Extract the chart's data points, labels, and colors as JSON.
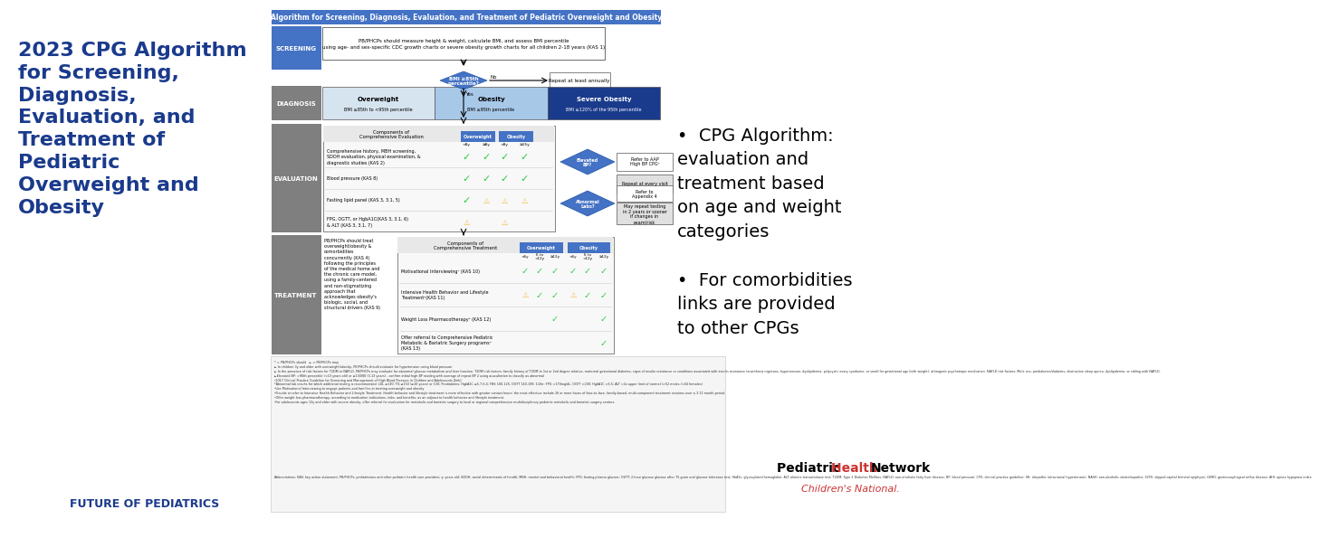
{
  "bg_color": "#ffffff",
  "left_panel": {
    "title_lines": [
      "2023 CPG Algorithm",
      "for Screening,",
      "Diagnosis,",
      "Evaluation, and",
      "Treatment of",
      "Pediatric",
      "Overweight and",
      "Obesity"
    ],
    "title_color": "#1a3a8c",
    "title_fontsize": 16,
    "footer": "FUTURE OF PEDIATRICS",
    "footer_color": "#1a3a8c",
    "footer_fontsize": 9
  },
  "center_panel": {
    "header": "Algorithm for Screening, Diagnosis, Evaluation, and Treatment of Pediatric Overweight and Obesity",
    "header_bg": "#4472c4",
    "header_color": "#ffffff",
    "sections": {
      "screening": {
        "label": "SCREENING",
        "label_bg": "#4472c4",
        "box1_text": "PB/PHCPs should measure height & weight, calculate BMI, and assess BMI percentile\nusing age- and sex-specific CDC growth charts or severe obesity growth charts for all children 2-18 years (KAS 1)",
        "diamond_text": "BMI ≥85th\npercentile?",
        "repeat_text": "Repeat at least annually"
      },
      "diagnosis": {
        "label": "DIAGNOSIS",
        "label_bg": "#7f7f7f",
        "categories": [
          "Overweight",
          "Obesity",
          "Severe Obesity"
        ],
        "descriptions": [
          "BMI ≥85th to <95th percentile",
          "BMI ≥95th percentile",
          "BMI ≥120% of the 95th percentile"
        ],
        "cat_colors": [
          "#d6e4f0",
          "#a8c8e8",
          "#1a3a8c"
        ],
        "cat_text_colors": [
          "#000000",
          "#000000",
          "#ffffff"
        ]
      },
      "evaluation": {
        "label": "EVALUATION",
        "label_bg": "#7f7f7f",
        "rows": [
          "Comprehensive history, MBH screening,\nSDOH evaluation, physical examination, &\ndiagnostic studies (KAS 2)",
          "Blood pressure (KAS 8)",
          "Fasting lipid panel (KAS 3, 3.1, 5)",
          "FPG, OGTT, or HgbA1C(KAS 3, 3.1, 6)\n& ALT (KAS 3, 3.1, 7)"
        ],
        "ow_sub_cols": [
          "<8y",
          "≥8y"
        ],
        "ob_sub_cols": [
          "<8y",
          "≥15y"
        ],
        "elevated_bp_text": "Elevated\nBP?",
        "abnormal_labs_text": "Abnormal\nLabs?",
        "refer_aap_text": "Refer to AAP\nHigh BP CPG²",
        "repeat_visit_text": "Repeat at every visit",
        "refer_appendix_text": "Refer to\nAppendix 4",
        "may_repeat_text": "May repeat testing\nin 2 years or sooner\nif changes in\nexam/risk"
      },
      "treatment": {
        "label": "TREATMENT",
        "label_bg": "#7f7f7f",
        "left_text": "PB/PHCPs should treat\noverweight/obesity &\ncomorbidities\nconcurrently (KAS 4)\nfollowing the principles\nof the medical home and\nthe chronic care model,\nusing a family-centered\nand non-stigmatizing\napproach that\nacknowledges obesity's\nbiologic, social, and\nstructural drivers (KAS 9)",
        "ow_sub_cols": [
          "<6y",
          "6 to\n<12y",
          "≥12y"
        ],
        "ob_sub_cols": [
          "<6y",
          "6 to\n<12y",
          "≥12y"
        ],
        "rows": [
          "Motivational Interviewing¹ (KAS 10)",
          "Intensive Health Behavior and Lifestyle\nTreatment²(KAS 11)",
          "Weight Loss Pharmacotherapy³ (KAS 12)",
          "Offer referral to Comprehensive Pediatric\nMetabolic & Bariatric Surgery programs⁴\n(KAS 13)"
        ]
      }
    },
    "footnote_text": "* = PB/PHCPs should   ► = PB/PHCPs may\n► In children 3y and older with overweight/obesity, PB/PHCPs should evaluate for hypertension using blood pressure\n► In the presence of risk factors for T2DM or NAFLD, PB/PHCPs may evaluate for abnormal glucose metabolism and liver function. T2DM risk factors: family history of T2DM in 1st or 2nd degree relative, maternal gestational diabetes, signs of insulin resistance or conditions associated with insulin resistance (acanthosis nigricans, hypertension, dyslipidemia, polycystic ovary syndrome, or small for gestational age birth weight), athrogenic psychotropic medication. NAFLD risk factors: Male sex, prediabetes/diabetes, obstructive sleep apnea, dyslipidemia, or sibling with NAFLD.\n►Elevated BP: >90th percentile (<13 years old) or ≥130/80 (3-13 years) - confirm initial high BP reading with average of repeat BP 2 using auscultation to classify as abnormal\n¹2017 Clinical Practice Guideline for Screening and Management of High Blood Pressure in Children and Adolescents [link]\n*Abnormal lab results for which additional testing is recommended: LDL ≥130; TG ≥150 (≥10 years) or 130; Prediabetes: HgbA1C ≥5.7-6.4; FBS 100-125; OGTT 140-199; 1/2hr: FPG >170mg/dL; OGTT >200; HgbA1C >6.5; ALT >2x upper limit of normal (>52 males />44 females)\n¹Use Motivational Interviewing to engage patients and families in treating overweight and obesity\n²Provide or refer to Intensive Health Behavior and Lifestyle Treatment. Health behavior and lifestyle treatment is more effective with greater contact hours; the most effective include 26 or more hours of face-to-face, family-based, multi-component treatment sessions over a 3-12 month period.\n³Offer weight loss pharmacotherapy, according to medication indications, risks, and benefits, as an adjunct to health behavior and lifestyle treatment.\n⁴For adolescents ages 13y and older with severe obesity, offer referral for evaluation for metabolic and bariatric surgery to local or regional comprehensive multidisciplinary pediatric metabolic and bariatric surgery centers.",
    "abbreviations": "Abbreviations: KAS: key action statement; PB/PHCPs: pediatricians and other pediatric health care providers; y: years old; SDOH: social determinants of health; MBH: mental and behavioral health; FPG: fasting plasma glucose; OGTT: 2-hour glucose glucose after 75 gram oral glucose tolerance test; HbA1c: glycosylated hemoglobin; ALT: alanine transaminase test; T2DM: Type 2 Diabetes Mellitus; NAFLD: non-alcoholic fatty liver disease; BP: blood pressure; CPG: clinical practice guideline; IIH: idiopathic intracranial hypertension; NASH: non-alcoholic steatohepatitis; SCFE: slipped capital femoral epiphysis; GERD: gastroesophageal reflux disease; AHI: apnea hypopnea index"
  },
  "right_panel": {
    "bullets": [
      "CPG Algorithm:\nevaluation and\ntreatment based\non age and weight\ncategories",
      "For comorbidities\nlinks are provided\nto other CPGs"
    ],
    "bullet_color": "#000000",
    "bullet_fontsize": 14
  },
  "branding": {
    "word1": "Pediatric ",
    "word2": "Health ",
    "word3": "Network",
    "color_regular": "#000000",
    "color_highlight": "#cc3333",
    "sub": "Children's National.",
    "sub_color": "#cc3333",
    "fontsize": 10,
    "sub_fontsize": 8
  }
}
